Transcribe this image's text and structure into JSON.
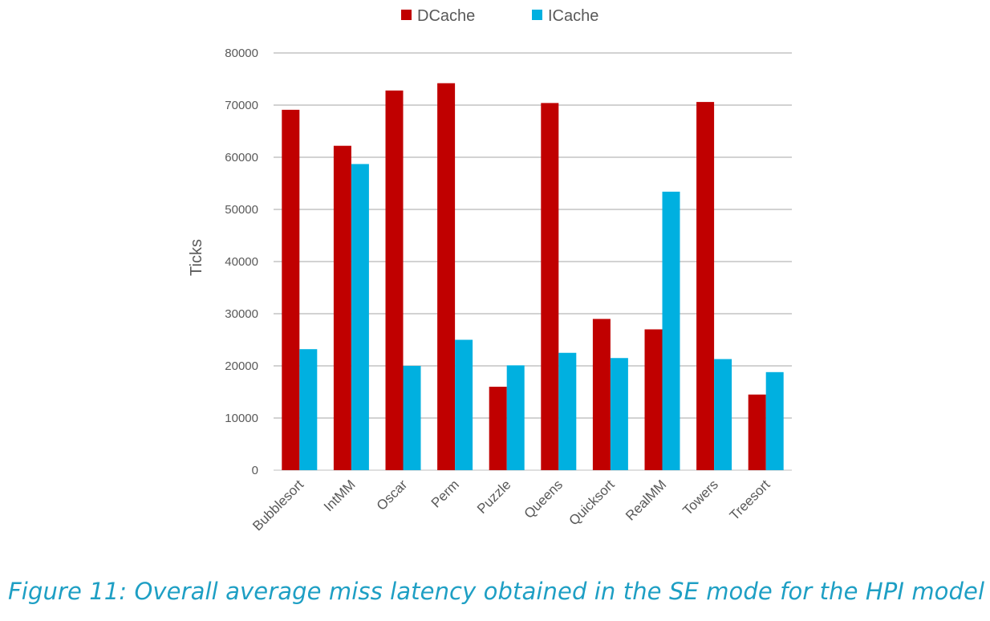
{
  "chart_data": {
    "type": "bar",
    "categories": [
      "Bubblesort",
      "IntMM",
      "Oscar",
      "Perm",
      "Puzzle",
      "Queens",
      "Quicksort",
      "RealMM",
      "Towers",
      "Treesort"
    ],
    "series": [
      {
        "name": "DCache",
        "color": "#c00000",
        "values": [
          69100,
          62200,
          72800,
          74200,
          16000,
          70400,
          29000,
          27000,
          70600,
          14500
        ]
      },
      {
        "name": "ICache",
        "color": "#00b0e0",
        "values": [
          23200,
          58700,
          20000,
          25000,
          20100,
          22500,
          21500,
          53400,
          21300,
          18800
        ]
      }
    ],
    "ylabel": "Ticks",
    "xlabel": "",
    "ylim": [
      0,
      80000
    ],
    "yticks": [
      "0",
      "10000",
      "20000",
      "30000",
      "40000",
      "50000",
      "60000",
      "70000",
      "80000"
    ],
    "grid": true,
    "legend_position": "top"
  },
  "caption": "Figure 11: Overall average miss latency obtained in the SE mode for the HPI model"
}
